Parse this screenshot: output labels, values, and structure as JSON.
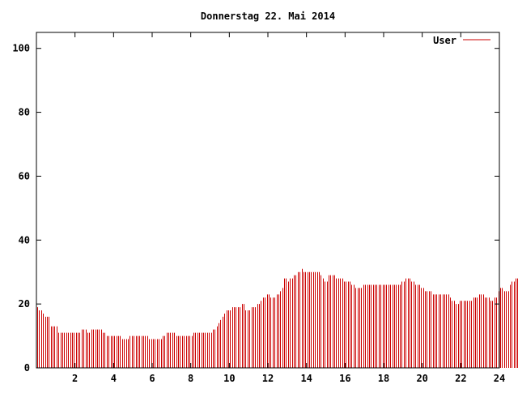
{
  "chart_data": {
    "type": "bar",
    "title": "Donnerstag 22. Mai 2014",
    "xlabel": "",
    "ylabel": "",
    "xlim": [
      0,
      24
    ],
    "ylim": [
      0,
      105
    ],
    "x_ticks": [
      "2",
      "4",
      "6",
      "8",
      "10",
      "12",
      "14",
      "16",
      "18",
      "20",
      "22",
      "24"
    ],
    "y_ticks": [
      "0",
      "20",
      "40",
      "60",
      "80",
      "100"
    ],
    "grid": false,
    "legend_position": "top-right",
    "series": [
      {
        "name": "User",
        "color": "#cc0000",
        "x_step_hours": 0.1,
        "values": [
          19,
          18,
          18,
          17,
          16,
          16,
          16,
          13,
          13,
          13,
          13,
          11,
          11,
          11,
          11,
          11,
          11,
          11,
          11,
          11,
          11,
          11,
          11,
          12,
          12,
          12,
          11,
          11,
          12,
          12,
          12,
          12,
          12,
          12,
          11,
          11,
          10,
          10,
          10,
          10,
          10,
          10,
          10,
          10,
          9,
          9,
          9,
          9,
          10,
          10,
          10,
          10,
          10,
          10,
          10,
          10,
          10,
          10,
          9,
          9,
          9,
          9,
          9,
          9,
          9,
          10,
          10,
          11,
          11,
          11,
          11,
          11,
          10,
          10,
          10,
          10,
          10,
          10,
          10,
          10,
          10,
          11,
          11,
          11,
          11,
          11,
          11,
          11,
          11,
          11,
          11,
          12,
          12,
          13,
          14,
          15,
          16,
          17,
          18,
          18,
          18,
          19,
          19,
          19,
          19,
          19,
          20,
          20,
          18,
          18,
          18,
          19,
          19,
          19,
          20,
          20,
          21,
          22,
          22,
          23,
          23,
          22,
          22,
          22,
          23,
          23,
          24,
          25,
          28,
          28,
          27,
          28,
          28,
          29,
          29,
          30,
          30,
          31,
          30,
          30,
          30,
          30,
          30,
          30,
          30,
          30,
          30,
          29,
          28,
          27,
          27,
          29,
          29,
          29,
          29,
          28,
          28,
          28,
          28,
          27,
          27,
          27,
          27,
          26,
          26,
          25,
          25,
          25,
          25,
          26,
          26,
          26,
          26,
          26,
          26,
          26,
          26,
          26,
          26,
          26,
          26,
          26,
          26,
          26,
          26,
          26,
          26,
          26,
          26,
          27,
          27,
          28,
          28,
          28,
          27,
          27,
          26,
          26,
          26,
          25,
          25,
          24,
          24,
          24,
          24,
          23,
          23,
          23,
          23,
          23,
          23,
          23,
          23,
          23,
          22,
          21,
          21,
          20,
          20,
          21,
          21,
          21,
          21,
          21,
          21,
          21,
          22,
          22,
          22,
          23,
          23,
          23,
          22,
          22,
          22,
          21,
          21,
          22,
          22,
          24,
          25,
          25,
          24,
          24,
          24,
          26,
          27,
          27,
          28,
          28,
          29,
          29,
          29,
          29,
          30,
          30,
          30,
          29,
          29,
          29,
          29,
          30,
          30,
          30,
          31,
          31,
          30,
          30,
          30,
          28,
          27,
          27,
          27,
          27,
          27,
          27,
          27,
          27,
          28,
          28,
          29,
          29,
          29,
          29,
          29,
          29,
          29,
          27,
          26,
          26,
          26,
          26,
          25,
          24,
          24,
          23,
          22,
          21,
          20,
          19,
          17,
          16
        ]
      }
    ]
  }
}
